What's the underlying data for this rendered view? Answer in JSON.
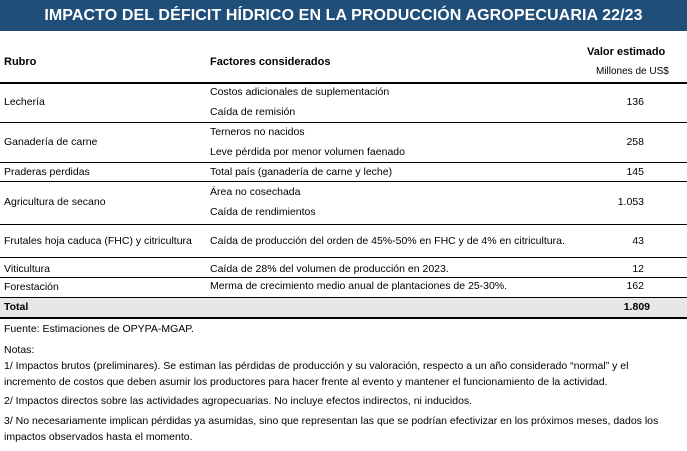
{
  "title": "IMPACTO DEL DÉFICIT HÍDRICO EN LA PRODUCCIÓN AGROPECUARIA 22/23",
  "headers": {
    "rubro": "Rubro",
    "factores": "Factores considerados",
    "valor": "Valor estimado",
    "unidad": "Millones de US$"
  },
  "rows": [
    {
      "rubro": "Lechería",
      "factores": [
        "Costos adicionales de suplementación",
        "Caída de remisión"
      ],
      "valor": "136"
    },
    {
      "rubro": "Ganadería de carne",
      "factores": [
        "Terneros no nacidos",
        "Leve pérdida por menor volumen faenado"
      ],
      "valor": "258"
    },
    {
      "rubro": "Praderas perdidas",
      "factores": [
        "Total país (ganadería de carne y leche)"
      ],
      "valor": "145"
    },
    {
      "rubro": "Agricultura de secano",
      "factores": [
        "Área no cosechada",
        "Caída de rendimientos"
      ],
      "valor": "1.053"
    },
    {
      "rubro": "Frutales hoja caduca (FHC) y citricultura",
      "factores": [
        "Caída de producción del orden de 45%-50% en FHC y de 4% en citricultura."
      ],
      "valor": "43"
    },
    {
      "rubro": "Viticultura",
      "factores": [
        "Caída de 28% del volumen de producción en 2023."
      ],
      "valor": "12"
    },
    {
      "rubro": "Forestación",
      "factores": [
        "Merma de crecimiento medio anual de plantaciones de 25-30%."
      ],
      "valor": "162"
    }
  ],
  "total": {
    "label": "Total",
    "valor": "1.809"
  },
  "fuente": "Fuente: Estimaciones de OPYPA-MGAP.",
  "notas_titulo": "Notas:",
  "notas": [
    "1/ Impactos brutos (preliminares). Se estiman las pérdidas de producción y su valoración, respecto a un año considerado “normal” y el",
    "incremento de costos que deben asumir los productores para hacer frente al evento y mantener el funcionamiento de la actividad.",
    "2/ Impactos directos sobre las actividades agropecuarias. No incluye efectos indirectos, ni inducidos.",
    "3/ No necesariamente  implican pérdidas ya asumidas, sino que representan las que se podrían efectivizar en los próximos meses, dados los",
    "impactos observados hasta el momento."
  ]
}
